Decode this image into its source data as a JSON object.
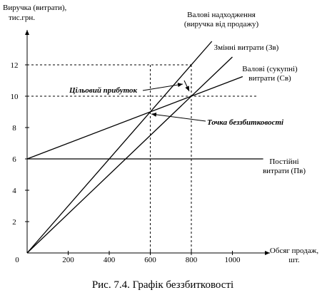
{
  "chart_data": {
    "type": "line",
    "caption": "Рис. 7.4. Графік беззбитковості",
    "y_label": [
      "Виручка (витрати),",
      "тис.грн."
    ],
    "x_label": [
      "Обсяг продаж,",
      "шт."
    ],
    "xlim": [
      0,
      1150
    ],
    "ylim": [
      0,
      14.5
    ],
    "xticks": [
      0,
      200,
      400,
      600,
      800,
      1000
    ],
    "yticks": [
      2,
      4,
      6,
      8,
      10,
      12
    ],
    "guides": {
      "y": [
        12,
        10
      ],
      "x": [
        600,
        800
      ]
    },
    "series": [
      {
        "name": [
          "Валові надходження",
          "(виручка від продажу)"
        ],
        "color": "#000000",
        "x": [
          0,
          900
        ],
        "values": [
          0,
          13.5
        ]
      },
      {
        "name": [
          "Змінні витрати (Зв)"
        ],
        "color": "#000000",
        "x": [
          0,
          1000
        ],
        "values": [
          0,
          12.5
        ]
      },
      {
        "name": [
          "Валові (сукупні)",
          "витрати (Св)"
        ],
        "color": "#000000",
        "x": [
          0,
          1050
        ],
        "values": [
          6,
          11.25
        ]
      },
      {
        "name": [
          "Постійні",
          "витрати (Пв)"
        ],
        "color": "#000000",
        "x": [
          0,
          1150
        ],
        "values": [
          6,
          6
        ]
      }
    ],
    "annotations": [
      "Цільовий прибуток",
      "Точка беззбитковості"
    ]
  }
}
